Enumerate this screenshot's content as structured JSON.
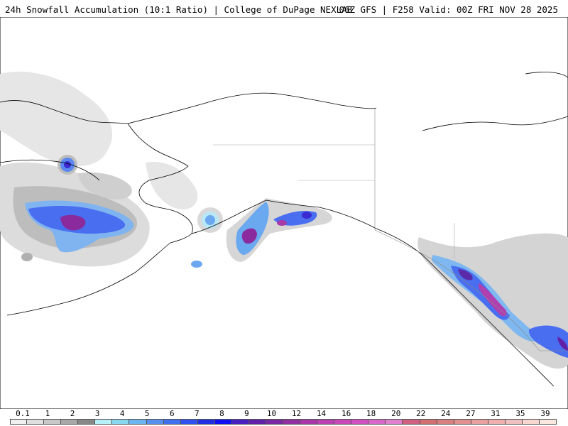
{
  "header": {
    "title_left": "24h Snowfall Accumulation (10:1 Ratio) | College of DuPage NEXLAB",
    "title_right": "06Z GFS | F258 Valid: 00Z FRI NOV 28 2025"
  },
  "map": {
    "region": "Alaska / western Canada / Bering Sea",
    "snow_color_scale": [
      "#f0f0f0",
      "#e0e0e0",
      "#c8c8c8",
      "#a8a8a8",
      "#888888",
      "#b8f0f8",
      "#88d8f0",
      "#6cb4f0",
      "#5890f0",
      "#4070f0",
      "#3050f0",
      "#2030e0",
      "#1010f0",
      "#4820c0",
      "#6020a8",
      "#7828a0",
      "#9030a0",
      "#a838a8",
      "#b840b0",
      "#c848b8",
      "#d050c0",
      "#d868c8",
      "#e080d0",
      "#d06080",
      "#d07070",
      "#d88080",
      "#e09090",
      "#e8a0a0",
      "#f0b0b0",
      "#f0c0c0",
      "#f8d8d0",
      "#f8e8e0"
    ]
  },
  "legend": {
    "labels": [
      "0.1",
      "1",
      "2",
      "3",
      "4",
      "5",
      "6",
      "7",
      "8",
      "9",
      "10",
      "12",
      "14",
      "16",
      "18",
      "20",
      "22",
      "24",
      "27",
      "31",
      "35",
      "39"
    ]
  }
}
